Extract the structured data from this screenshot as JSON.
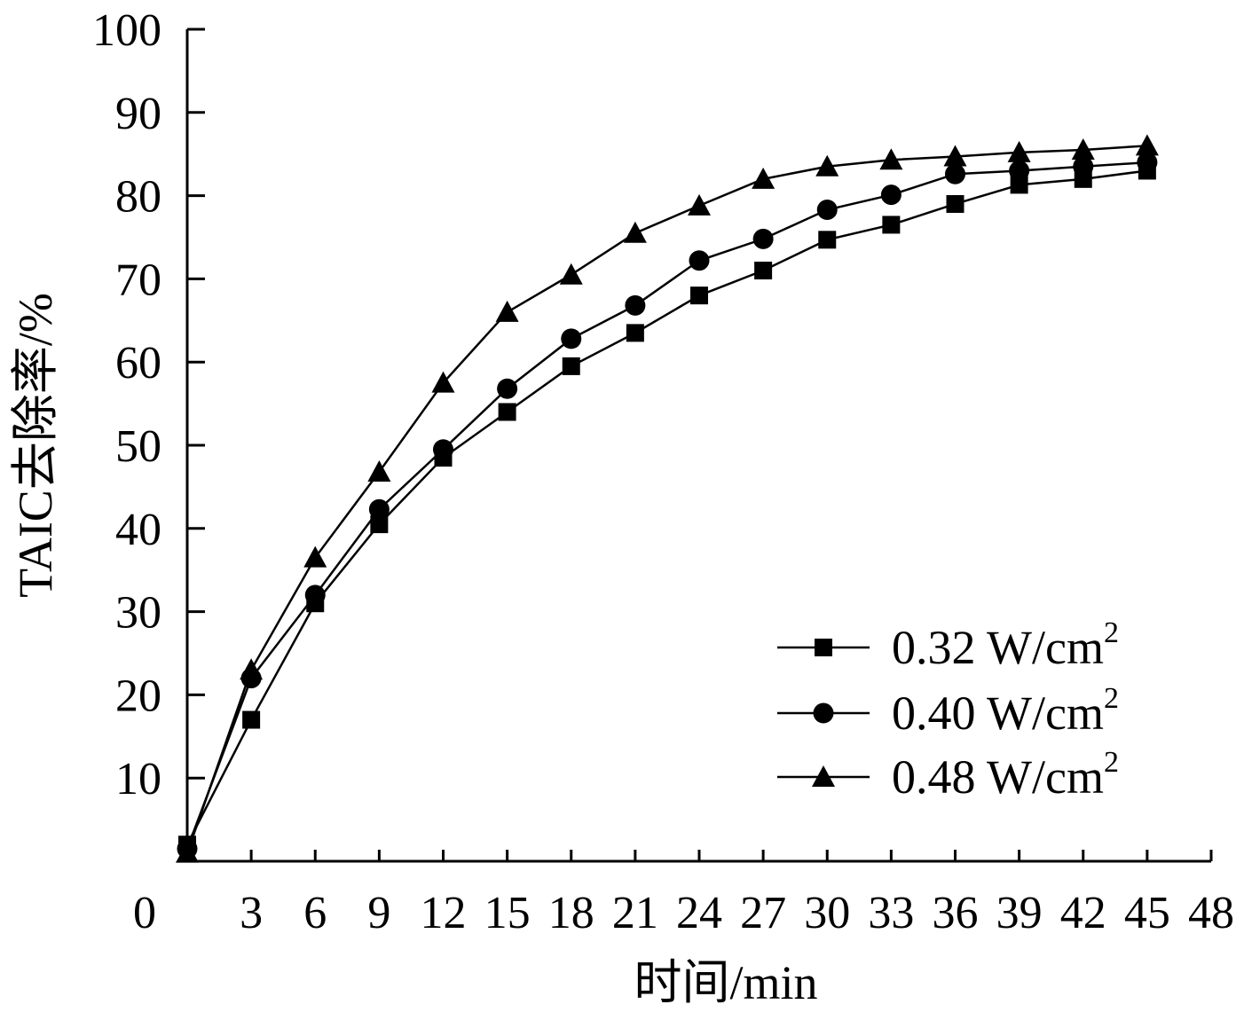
{
  "chart_data": {
    "type": "line",
    "title": "",
    "xlabel": "时间/min",
    "ylabel": "TAIC去除率/%",
    "xlim": [
      0,
      48
    ],
    "ylim": [
      0,
      100
    ],
    "x_ticks": [
      "0",
      "3",
      "6",
      "9",
      "12",
      "15",
      "18",
      "21",
      "24",
      "27",
      "30",
      "33",
      "36",
      "39",
      "42",
      "45",
      "48"
    ],
    "y_ticks": [
      "10",
      "20",
      "30",
      "40",
      "50",
      "60",
      "70",
      "80",
      "90",
      "100"
    ],
    "x": [
      0,
      3,
      6,
      9,
      12,
      15,
      18,
      21,
      24,
      27,
      30,
      33,
      36,
      39,
      42,
      45
    ],
    "legend_position": "bottom-right",
    "series": [
      {
        "name": "0.32 W/cm",
        "unit_superscript": "2",
        "marker": "square",
        "values": [
          2.0,
          17.0,
          31.0,
          40.5,
          48.5,
          54.0,
          59.5,
          63.5,
          68.0,
          71.0,
          74.7,
          76.5,
          79.0,
          81.3,
          82.0,
          83.0
        ]
      },
      {
        "name": "0.40 W/cm",
        "unit_superscript": "2",
        "marker": "circle",
        "values": [
          1.5,
          22.0,
          32.0,
          42.3,
          49.5,
          56.8,
          62.8,
          66.8,
          72.2,
          74.8,
          78.3,
          80.1,
          82.6,
          83.0,
          83.5,
          84.0
        ]
      },
      {
        "name": "0.48 W/cm",
        "unit_superscript": "2",
        "marker": "triangle",
        "values": [
          1.0,
          23.0,
          36.5,
          46.8,
          57.5,
          66.0,
          70.5,
          75.5,
          78.8,
          82.0,
          83.5,
          84.3,
          84.7,
          85.2,
          85.5,
          86.0
        ]
      }
    ]
  }
}
